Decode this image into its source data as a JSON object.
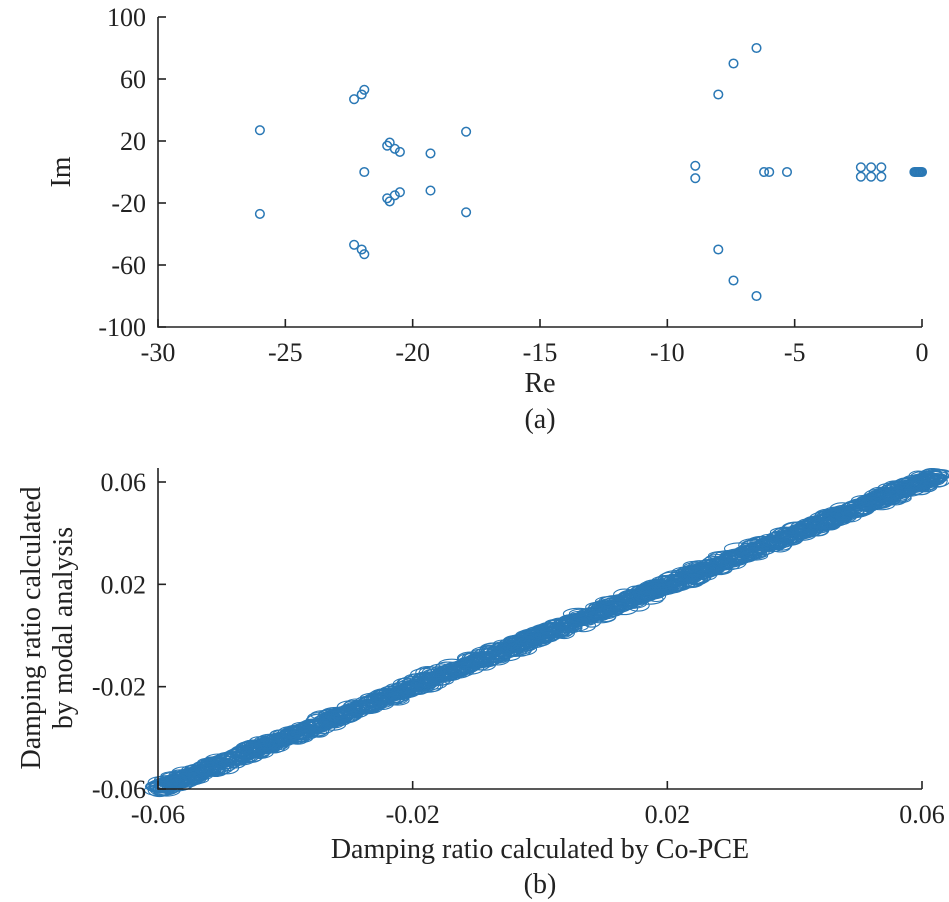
{
  "chart_data": [
    {
      "type": "scatter",
      "panel_label": "(a)",
      "xlabel": "Re",
      "ylabel": "Im",
      "xlim": [
        -30,
        0
      ],
      "ylim": [
        -100,
        100
      ],
      "xticks": [
        -30,
        -25,
        -20,
        -15,
        -10,
        -5,
        0
      ],
      "yticks": [
        -100,
        -60,
        -20,
        20,
        60,
        100
      ],
      "xtick_labels": [
        "-30",
        "-25",
        "-20",
        "-15",
        "-10",
        "-5",
        "0"
      ],
      "ytick_labels": [
        "-100",
        "-60",
        "-20",
        "20",
        "60",
        "100"
      ],
      "marker": "open-circle",
      "color": "#2a78b5",
      "points": [
        [
          -26.0,
          27
        ],
        [
          -26.0,
          -27
        ],
        [
          -22.3,
          47
        ],
        [
          -22.3,
          -47
        ],
        [
          -22.0,
          50
        ],
        [
          -22.0,
          -50
        ],
        [
          -21.9,
          53
        ],
        [
          -21.9,
          -53
        ],
        [
          -21.9,
          0
        ],
        [
          -21.0,
          17
        ],
        [
          -21.0,
          -17
        ],
        [
          -20.9,
          19
        ],
        [
          -20.9,
          -19
        ],
        [
          -20.7,
          15
        ],
        [
          -20.7,
          -15
        ],
        [
          -20.5,
          13
        ],
        [
          -20.5,
          -13
        ],
        [
          -19.3,
          12
        ],
        [
          -19.3,
          -12
        ],
        [
          -17.9,
          26
        ],
        [
          -17.9,
          -26
        ],
        [
          -8.9,
          4
        ],
        [
          -8.9,
          -4
        ],
        [
          -8.0,
          50
        ],
        [
          -8.0,
          -50
        ],
        [
          -7.4,
          70
        ],
        [
          -7.4,
          -70
        ],
        [
          -6.5,
          80
        ],
        [
          -6.5,
          -80
        ],
        [
          -6.2,
          0
        ],
        [
          -6.0,
          0
        ],
        [
          -5.3,
          0
        ],
        [
          -2.4,
          3
        ],
        [
          -2.4,
          -3
        ],
        [
          -2.0,
          3
        ],
        [
          -2.0,
          -3
        ],
        [
          -1.6,
          3
        ],
        [
          -1.6,
          -3
        ],
        [
          -0.3,
          0
        ],
        [
          -0.25,
          0
        ],
        [
          -0.2,
          0
        ],
        [
          -0.15,
          0
        ],
        [
          -0.1,
          0
        ],
        [
          -0.05,
          0
        ],
        [
          0,
          0
        ]
      ]
    },
    {
      "type": "scatter",
      "panel_label": "(b)",
      "xlabel": "Damping ratio calculated by Co-PCE",
      "ylabel_lines": [
        "Damping ratio calculated",
        "by modal analysis"
      ],
      "xlim": [
        -0.06,
        0.06
      ],
      "ylim": [
        -0.06,
        0.06
      ],
      "xticks": [
        -0.06,
        -0.02,
        0.02,
        0.06
      ],
      "yticks": [
        -0.06,
        -0.02,
        0.02,
        0.06
      ],
      "xtick_labels": [
        "-0.06",
        "-0.02",
        "0.02",
        "0.06"
      ],
      "ytick_labels": [
        "-0.06",
        "-0.02",
        "0.02",
        "0.06"
      ],
      "marker": "open-ellipse",
      "color": "#2a78b5",
      "trend": {
        "slope": 1.0,
        "from": -0.06,
        "to": 0.063
      }
    }
  ]
}
